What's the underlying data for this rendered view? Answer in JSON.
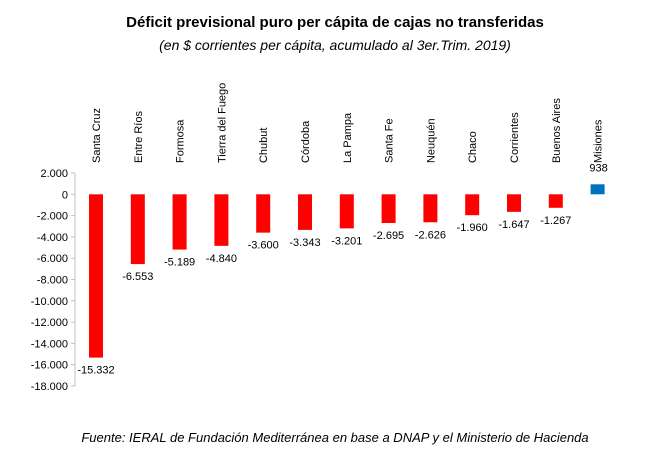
{
  "chart_data": {
    "type": "bar",
    "title": "Déficit previsional puro per cápita de cajas no transferidas",
    "subtitle": "(en $ corrientes per cápita, acumulado al 3er.Trim. 2019)",
    "xlabel": "",
    "ylabel": "",
    "categories": [
      "Santa Cruz",
      "Entre Ríos",
      "Formosa",
      "Tierra del Fuego",
      "Chubut",
      "Córdoba",
      "La Pampa",
      "Santa Fe",
      "Neuquén",
      "Chaco",
      "Corrientes",
      "Buenos Aires",
      "Misiones"
    ],
    "values": [
      -15332,
      -6553,
      -5189,
      -4840,
      -3600,
      -3343,
      -3201,
      -2695,
      -2626,
      -1960,
      -1647,
      -1267,
      938
    ],
    "value_labels": [
      "-15.332",
      "-6.553",
      "-5.189",
      "-4.840",
      "-3.600",
      "-3.343",
      "-3.201",
      "-2.695",
      "-2.626",
      "-1.960",
      "-1.647",
      "-1.267",
      "938"
    ],
    "y_ticks": [
      2000,
      0,
      -2000,
      -4000,
      -6000,
      -8000,
      -10000,
      -12000,
      -14000,
      -16000,
      -18000
    ],
    "y_tick_labels": [
      "2.000",
      "0",
      "-2.000",
      "-4.000",
      "-6.000",
      "-8.000",
      "-10.000",
      "-12.000",
      "-14.000",
      "-16.000",
      "-18.000"
    ],
    "ylim": [
      -18000,
      2000
    ],
    "grid": false,
    "colors": {
      "negative": "#ff0000",
      "positive": "#0070c0",
      "axis": "#bfbfbf"
    }
  },
  "source": "Fuente: IERAL de Fundación Mediterránea en base a DNAP y el Ministerio de Hacienda"
}
